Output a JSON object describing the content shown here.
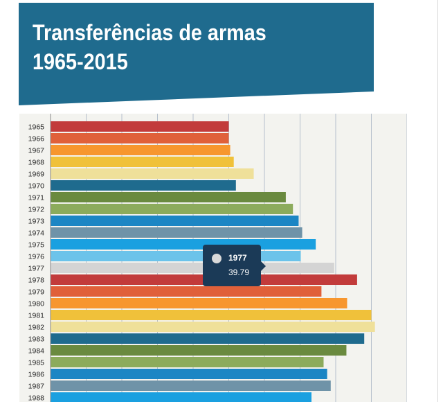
{
  "header": {
    "title_line1": "Transferências de armas",
    "title_line2": "1965-2015",
    "background": "#1f6b8e"
  },
  "tooltip": {
    "year": "1977",
    "value": "39.79",
    "marker_color": "#d9d9d9"
  },
  "chart_data": {
    "type": "bar",
    "orientation": "horizontal",
    "title": "Transferências de armas 1965-2015",
    "xlim": [
      0,
      50
    ],
    "grid": true,
    "categories": [
      "1965",
      "1966",
      "1967",
      "1968",
      "1969",
      "1970",
      "1971",
      "1972",
      "1973",
      "1974",
      "1975",
      "1976",
      "1977",
      "1978",
      "1979",
      "1980",
      "1981",
      "1982",
      "1983",
      "1984",
      "1985",
      "1986",
      "1987",
      "1988"
    ],
    "values": [
      25.0,
      25.0,
      25.2,
      25.7,
      28.5,
      26.0,
      33.0,
      34.0,
      34.8,
      35.3,
      37.2,
      35.1,
      39.79,
      43.0,
      38.0,
      41.6,
      45.0,
      45.5,
      44.0,
      41.5,
      38.3,
      38.8,
      39.3,
      36.6
    ],
    "colors": [
      "#c23b3b",
      "#e0603a",
      "#f7962e",
      "#f0c13a",
      "#efe09a",
      "#1f6b8e",
      "#6a8a3f",
      "#8cab5c",
      "#1c86c4",
      "#6f93a8",
      "#1aa0e0",
      "#6cc3ea",
      "#d4d4d4",
      "#c23b3b",
      "#e0603a",
      "#f7962e",
      "#f0c13a",
      "#efe09a",
      "#1f6b8e",
      "#6a8a3f",
      "#8cab5c",
      "#1c86c4",
      "#6f93a8",
      "#1aa0e0"
    ],
    "highlight": "1977"
  }
}
